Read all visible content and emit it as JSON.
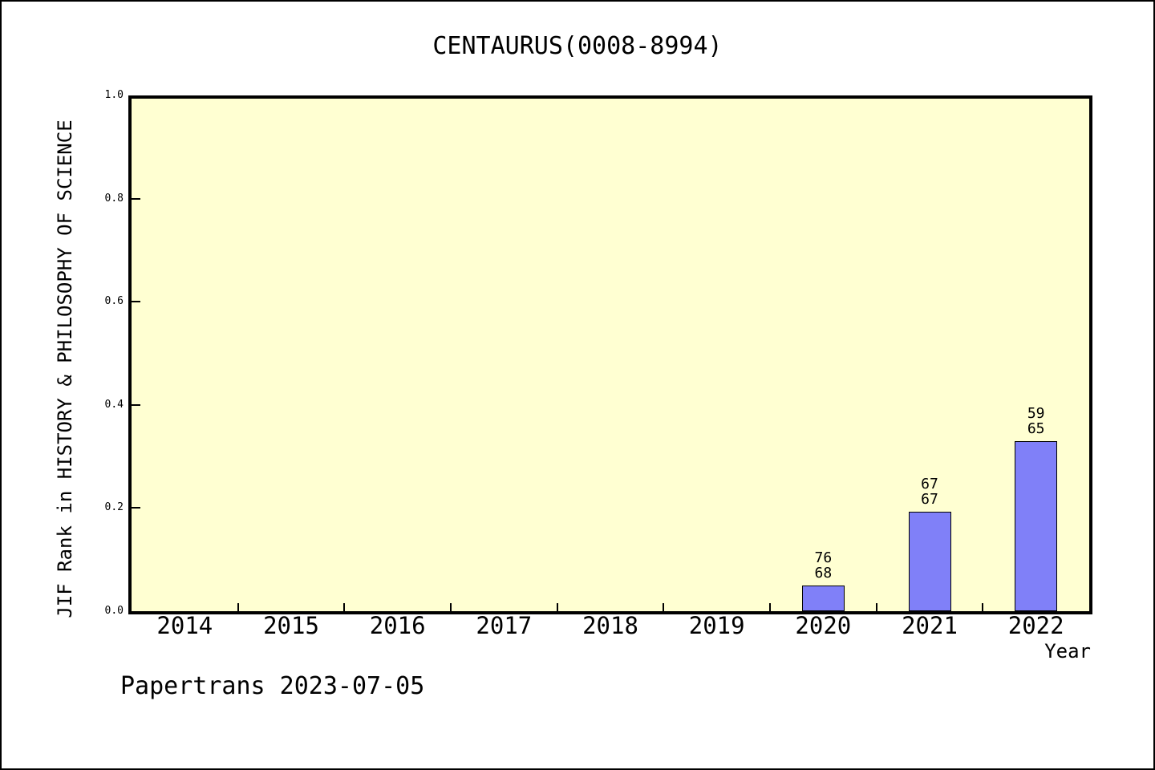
{
  "header": {
    "title": "CENTAURUS(0008-8994)"
  },
  "footer": {
    "credit": "Papertrans 2023-07-05"
  },
  "chart_data": {
    "type": "bar",
    "title": "CENTAURUS(0008-8994)",
    "xlabel": "Year",
    "ylabel": "JIF Rank in HISTORY & PHILOSOPHY OF SCIENCE",
    "categories": [
      "2014",
      "2015",
      "2016",
      "2017",
      "2018",
      "2019",
      "2020",
      "2021",
      "2022"
    ],
    "values": [
      0,
      0,
      0,
      0,
      0,
      0,
      0.05,
      0.193,
      0.33
    ],
    "bar_labels": [
      [],
      [],
      [],
      [],
      [],
      [],
      [
        "76",
        "68"
      ],
      [
        "67",
        "67"
      ],
      [
        "59",
        "65"
      ]
    ],
    "ylim": [
      0,
      1
    ],
    "yticks": [
      1.0,
      0.8,
      0.6,
      0.4,
      0.2,
      0.0
    ],
    "ytick_labels": [
      "1.0",
      "0.8",
      "0.6",
      "0.4",
      "0.2",
      "0.0"
    ],
    "grid": false,
    "legend_position": "none",
    "colors": {
      "bar_fill": "#8080F8",
      "bar_edge": "#000000",
      "plot_bg": "#FFFFD2",
      "axis": "#000000",
      "text": "#000000",
      "page_bg": "#FFFFFF"
    }
  }
}
